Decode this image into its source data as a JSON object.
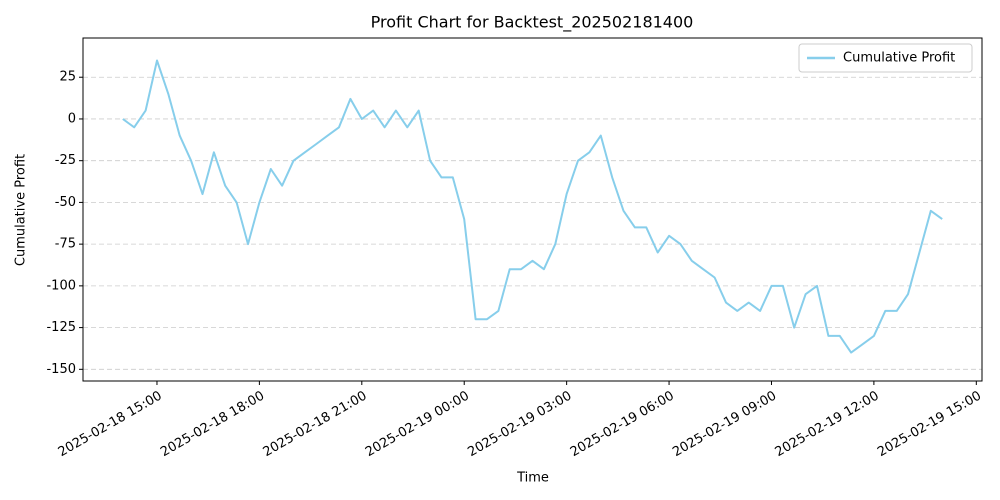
{
  "chart_data": {
    "type": "line",
    "title": "Profit Chart for Backtest_202502181400",
    "x_label": "Time",
    "y_label": "Cumulative Profit",
    "x": [
      "2025-02-18 14:00",
      "2025-02-18 14:20",
      "2025-02-18 14:40",
      "2025-02-18 15:00",
      "2025-02-18 15:20",
      "2025-02-18 15:40",
      "2025-02-18 16:00",
      "2025-02-18 16:20",
      "2025-02-18 16:40",
      "2025-02-18 17:00",
      "2025-02-18 17:20",
      "2025-02-18 17:40",
      "2025-02-18 18:00",
      "2025-02-18 18:20",
      "2025-02-18 18:40",
      "2025-02-18 19:00",
      "2025-02-18 19:20",
      "2025-02-18 19:40",
      "2025-02-18 20:00",
      "2025-02-18 20:20",
      "2025-02-18 20:40",
      "2025-02-18 21:00",
      "2025-02-18 21:20",
      "2025-02-18 21:40",
      "2025-02-18 22:00",
      "2025-02-18 22:20",
      "2025-02-18 22:40",
      "2025-02-18 23:00",
      "2025-02-18 23:20",
      "2025-02-18 23:40",
      "2025-02-19 00:00",
      "2025-02-19 00:20",
      "2025-02-19 00:40",
      "2025-02-19 01:00",
      "2025-02-19 01:20",
      "2025-02-19 01:40",
      "2025-02-19 02:00",
      "2025-02-19 02:20",
      "2025-02-19 02:40",
      "2025-02-19 03:00",
      "2025-02-19 03:20",
      "2025-02-19 03:40",
      "2025-02-19 04:00",
      "2025-02-19 04:20",
      "2025-02-19 04:40",
      "2025-02-19 05:00",
      "2025-02-19 05:20",
      "2025-02-19 05:40",
      "2025-02-19 06:00",
      "2025-02-19 06:20",
      "2025-02-19 06:40",
      "2025-02-19 07:00",
      "2025-02-19 07:20",
      "2025-02-19 07:40",
      "2025-02-19 08:00",
      "2025-02-19 08:20",
      "2025-02-19 08:40",
      "2025-02-19 09:00",
      "2025-02-19 09:20",
      "2025-02-19 09:40",
      "2025-02-19 10:00",
      "2025-02-19 10:20",
      "2025-02-19 10:40",
      "2025-02-19 11:00",
      "2025-02-19 11:20",
      "2025-02-19 11:40",
      "2025-02-19 12:00",
      "2025-02-19 12:20",
      "2025-02-19 12:40",
      "2025-02-19 13:00",
      "2025-02-19 13:20",
      "2025-02-19 13:40",
      "2025-02-19 14:00"
    ],
    "series": [
      {
        "name": "Cumulative Profit",
        "color": "#87ceeb",
        "values": [
          0,
          -5,
          5,
          35,
          15,
          -10,
          -25,
          -45,
          -20,
          -40,
          -50,
          -75,
          -50,
          -30,
          -40,
          -25,
          -20,
          -15,
          -10,
          -5,
          12,
          0,
          5,
          -5,
          5,
          -5,
          5,
          -25,
          -35,
          -35,
          -60,
          -120,
          -120,
          -115,
          -90,
          -90,
          -85,
          -90,
          -75,
          -45,
          -25,
          -20,
          -10,
          -35,
          -55,
          -65,
          -65,
          -80,
          -70,
          -75,
          -85,
          -90,
          -95,
          -110,
          -115,
          -110,
          -115,
          -100,
          -100,
          -125,
          -105,
          -100,
          -130,
          -130,
          -140,
          -135,
          -130,
          -115,
          -115,
          -105,
          -80,
          -55,
          -60
        ]
      }
    ],
    "xlim": [
      "2025-02-18 12:50",
      "2025-02-19 15:10"
    ],
    "xticks": [
      "2025-02-18 15:00",
      "2025-02-18 18:00",
      "2025-02-18 21:00",
      "2025-02-19 00:00",
      "2025-02-19 03:00",
      "2025-02-19 06:00",
      "2025-02-19 09:00",
      "2025-02-19 12:00",
      "2025-02-19 15:00"
    ],
    "ylim": [
      -157,
      48.5
    ],
    "yticks": [
      -150,
      -125,
      -100,
      -75,
      -50,
      -25,
      0,
      25
    ],
    "grid": true,
    "legend": "upper right"
  }
}
